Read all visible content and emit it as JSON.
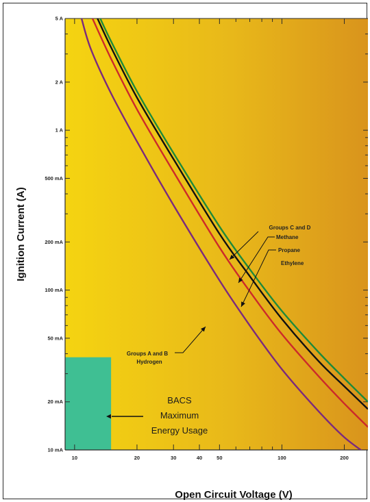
{
  "chart_data": {
    "type": "line",
    "xlabel": "Open Circuit Voltage (V)",
    "ylabel": "Ignition Current (A)",
    "x_scale": "log",
    "y_scale": "log",
    "xlim": [
      9,
      260
    ],
    "ylim": [
      0.01,
      5
    ],
    "x_ticks": [
      {
        "value": 10,
        "label": "10"
      },
      {
        "value": 20,
        "label": "20"
      },
      {
        "value": 30,
        "label": "30"
      },
      {
        "value": 40,
        "label": "40"
      },
      {
        "value": 50,
        "label": "50"
      },
      {
        "value": 100,
        "label": "100"
      },
      {
        "value": 200,
        "label": "200"
      }
    ],
    "y_ticks": [
      {
        "value": 5,
        "label": "5 A"
      },
      {
        "value": 2,
        "label": "2 A"
      },
      {
        "value": 1,
        "label": "1 A"
      },
      {
        "value": 0.5,
        "label": "500 mA"
      },
      {
        "value": 0.2,
        "label": "200 mA"
      },
      {
        "value": 0.1,
        "label": "100 mA"
      },
      {
        "value": 0.05,
        "label": "50 mA"
      },
      {
        "value": 0.02,
        "label": "20 mA"
      },
      {
        "value": 0.01,
        "label": "10 mA"
      }
    ],
    "series": [
      {
        "name": "Groups C and D Methane",
        "color": "#1f8a3b",
        "x": [
          13.3,
          15,
          20,
          30,
          50,
          70,
          100,
          150,
          200,
          260
        ],
        "y": [
          5,
          3.6,
          1.75,
          0.72,
          0.25,
          0.135,
          0.074,
          0.041,
          0.028,
          0.02
        ]
      },
      {
        "name": "Propane",
        "color": "#111111",
        "x": [
          12.9,
          15,
          20,
          30,
          50,
          70,
          100,
          150,
          200,
          260
        ],
        "y": [
          5,
          3.3,
          1.6,
          0.66,
          0.225,
          0.122,
          0.066,
          0.036,
          0.025,
          0.018
        ]
      },
      {
        "name": "Ethylene",
        "color": "#cc2a2a",
        "x": [
          12.2,
          15,
          20,
          30,
          50,
          70,
          100,
          150,
          200,
          260
        ],
        "y": [
          5,
          2.8,
          1.35,
          0.55,
          0.185,
          0.098,
          0.053,
          0.029,
          0.0195,
          0.0139
        ]
      },
      {
        "name": "Groups A and B Hydrogen",
        "color": "#7b2a7d",
        "x": [
          10.8,
          12,
          15,
          20,
          30,
          50,
          70,
          100,
          150,
          200,
          260
        ],
        "y": [
          5,
          3.2,
          1.7,
          0.85,
          0.34,
          0.115,
          0.06,
          0.032,
          0.0175,
          0.012,
          0.0093
        ]
      }
    ],
    "region": {
      "x": [
        9,
        15
      ],
      "y": [
        0.01,
        0.038
      ],
      "color": "#3fbf93"
    },
    "curve_labels": [
      {
        "text": "Groups C and D",
        "series": 0
      },
      {
        "text": "Methane",
        "series": 0
      },
      {
        "text": "Propane",
        "series": 1
      },
      {
        "text": "Ethylene",
        "series": 2
      },
      {
        "text": "Groups A and B",
        "series": 3
      },
      {
        "text": "Hydrogen",
        "series": 3
      }
    ],
    "annotation": {
      "lines": [
        "BACS",
        "Maximum",
        "Energy Usage"
      ]
    }
  }
}
